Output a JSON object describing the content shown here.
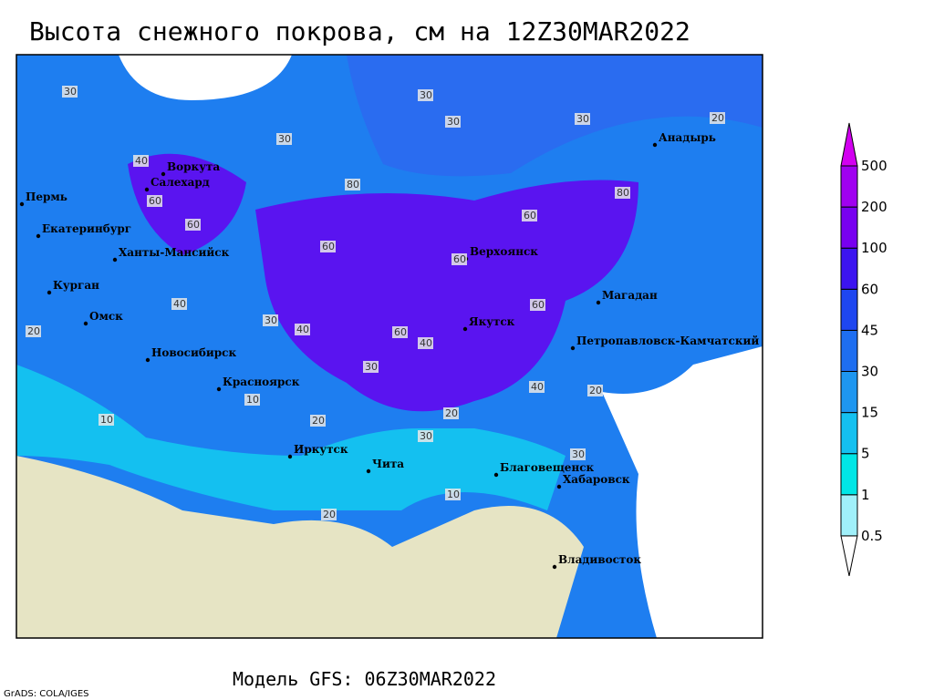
{
  "title": "Высота снежного покрова, см на 12Z30MAR2022",
  "footer": "Модель GFS: 06Z30MAR2022",
  "credit": "GrADS: COLA/IGES",
  "cities": [
    "Воркута",
    "Салехард",
    "Пермь",
    "Екатеринбург",
    "Ханты-Мансийск",
    "Курган",
    "Омск",
    "Новосибирск",
    "Красноярск",
    "Иркутск",
    "Чита",
    "Благовещенск",
    "Хабаровск",
    "Владивосток",
    "Якутск",
    "Верхоянск",
    "Магадан",
    "Анадырь",
    "Петропавловск-Камчатский"
  ],
  "contour_labels": [
    30,
    30,
    30,
    30,
    20,
    30,
    40,
    60,
    80,
    60,
    60,
    60,
    80,
    60,
    40,
    60,
    40,
    60,
    40,
    30,
    20,
    20,
    10,
    10,
    20,
    30,
    10,
    20,
    30,
    20,
    40,
    30
  ],
  "legend": {
    "levels": [
      0.5,
      1,
      5,
      15,
      30,
      45,
      60,
      100,
      200,
      500
    ],
    "colors": [
      "#ffffff",
      "#a0f0fa",
      "#00e6e6",
      "#14c0f0",
      "#1e96f0",
      "#1e6ef0",
      "#1e46f0",
      "#3c14f0",
      "#7800f0",
      "#a000f0",
      "#d200f0"
    ]
  }
}
